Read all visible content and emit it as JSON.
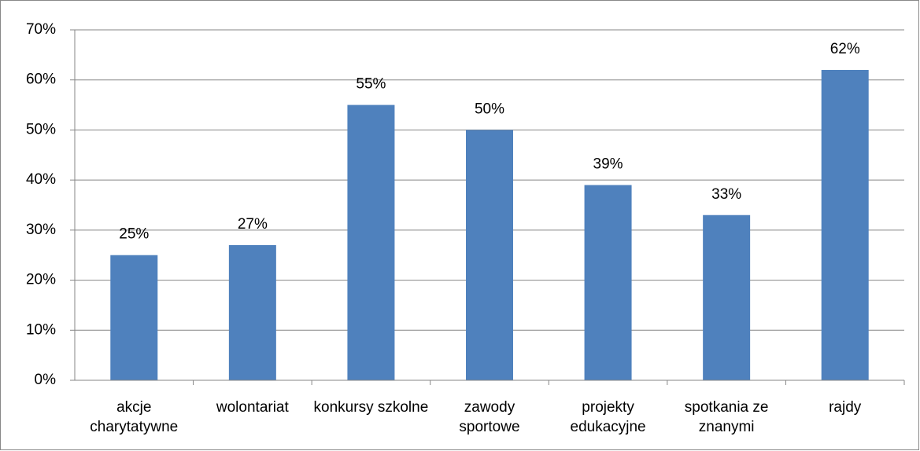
{
  "chart_data": {
    "type": "bar",
    "categories": [
      "akcje charytatywne",
      "wolontariat",
      "konkursy szkolne",
      "zawody sportowe",
      "projekty edukacyjne",
      "spotkania ze znanymi",
      "rajdy"
    ],
    "values": [
      25,
      27,
      55,
      50,
      39,
      33,
      62
    ],
    "value_labels": [
      "25%",
      "27%",
      "55%",
      "50%",
      "39%",
      "33%",
      "62%"
    ],
    "color": "#4f81bd",
    "ylim": [
      0,
      70
    ],
    "yticks": [
      {
        "value": 0,
        "label": "0%"
      },
      {
        "value": 10,
        "label": "10%"
      },
      {
        "value": 20,
        "label": "20%"
      },
      {
        "value": 30,
        "label": "30%"
      },
      {
        "value": 40,
        "label": "40%"
      },
      {
        "value": 50,
        "label": "50%"
      },
      {
        "value": 60,
        "label": "60%"
      },
      {
        "value": 70,
        "label": "70%"
      }
    ],
    "grid": true
  }
}
